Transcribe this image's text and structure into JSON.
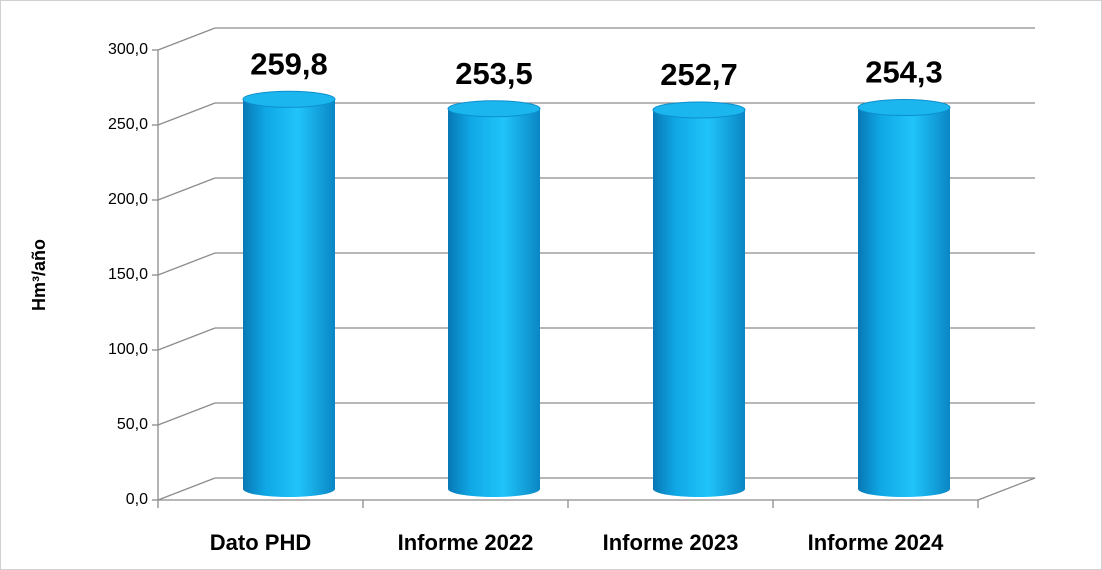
{
  "chart_data": {
    "type": "bar3d",
    "y_label": "Hm³/año",
    "categories": [
      "Dato PHD",
      "Informe 2022",
      "Informe 2023",
      "Informe 2024"
    ],
    "values": [
      259.8,
      253.5,
      252.7,
      254.3
    ],
    "value_labels": [
      "259,8",
      "253,5",
      "252,7",
      "254,3"
    ],
    "color": "#0aa8e8",
    "ylim": [
      0,
      300
    ],
    "yticks": [
      {
        "value": 0,
        "label": "0,0"
      },
      {
        "value": 50,
        "label": "50,0"
      },
      {
        "value": 100,
        "label": "100,0"
      },
      {
        "value": 150,
        "label": "150,0"
      },
      {
        "value": 200,
        "label": "200,0"
      },
      {
        "value": 250,
        "label": "250,0"
      },
      {
        "value": 300,
        "label": "300,0"
      }
    ],
    "grid": true
  }
}
